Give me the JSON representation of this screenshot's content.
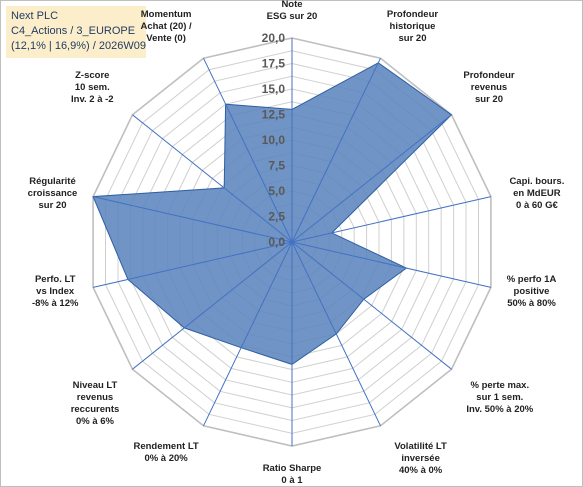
{
  "header": {
    "line1": "Next PLC",
    "line2": "C4_Actions / 3_EUROPE",
    "line3": "(12,1% | 16,9%) / 2026W09"
  },
  "chart_data": {
    "type": "radar",
    "rmin": 0,
    "rmax": 20,
    "tick_step": 2.5,
    "grid_step": 1.25,
    "tick_labels": [
      "0,0",
      "2,5",
      "5,0",
      "7,5",
      "10,0",
      "12,5",
      "15,0",
      "17,5",
      "20,0"
    ],
    "fill_color": "#5b85bd",
    "line_color": "#2e5fa3",
    "grid_color": "#d0d0d0",
    "axes": [
      {
        "label": [
          "Note",
          "ESG sur 20"
        ],
        "value": 13
      },
      {
        "label": [
          "Profondeur",
          "historique",
          "sur 20"
        ],
        "value": 19.5
      },
      {
        "label": [
          "Profondeur",
          "revenus",
          "sur 20"
        ],
        "value": 20
      },
      {
        "label": [
          "Capi. bours.",
          "en MdEUR",
          "0 à 60 G€"
        ],
        "value": 4
      },
      {
        "label": [
          "% perfo 1A",
          "positive",
          "50% à 80%"
        ],
        "value": 11.5
      },
      {
        "label": [
          "% perte max.",
          "sur 1 sem.",
          "Inv. 50% à 20%"
        ],
        "value": 9
      },
      {
        "label": [
          "Volatilité LT",
          "inversée",
          "40% à 0%"
        ],
        "value": 10
      },
      {
        "label": [
          "Ratio Sharpe",
          "0 à 1"
        ],
        "value": 12
      },
      {
        "label": [
          "Rendement LT",
          "0% à 20%"
        ],
        "value": 11.5
      },
      {
        "label": [
          "Niveau LT",
          "revenus",
          "reccurents",
          "0% à 6%"
        ],
        "value": 13.5
      },
      {
        "label": [
          "Perfo. LT",
          "vs Index",
          "-8% à 12%"
        ],
        "value": 16.5
      },
      {
        "label": [
          "Régularité",
          "croissance",
          "sur 20"
        ],
        "value": 20
      },
      {
        "label": [
          "Z-score",
          "10 sem.",
          "Inv. 2 à -2"
        ],
        "value": 8.5
      },
      {
        "label": [
          "Momentum",
          "Achat (20) /",
          "Vente (0)"
        ],
        "value": 15
      }
    ]
  }
}
